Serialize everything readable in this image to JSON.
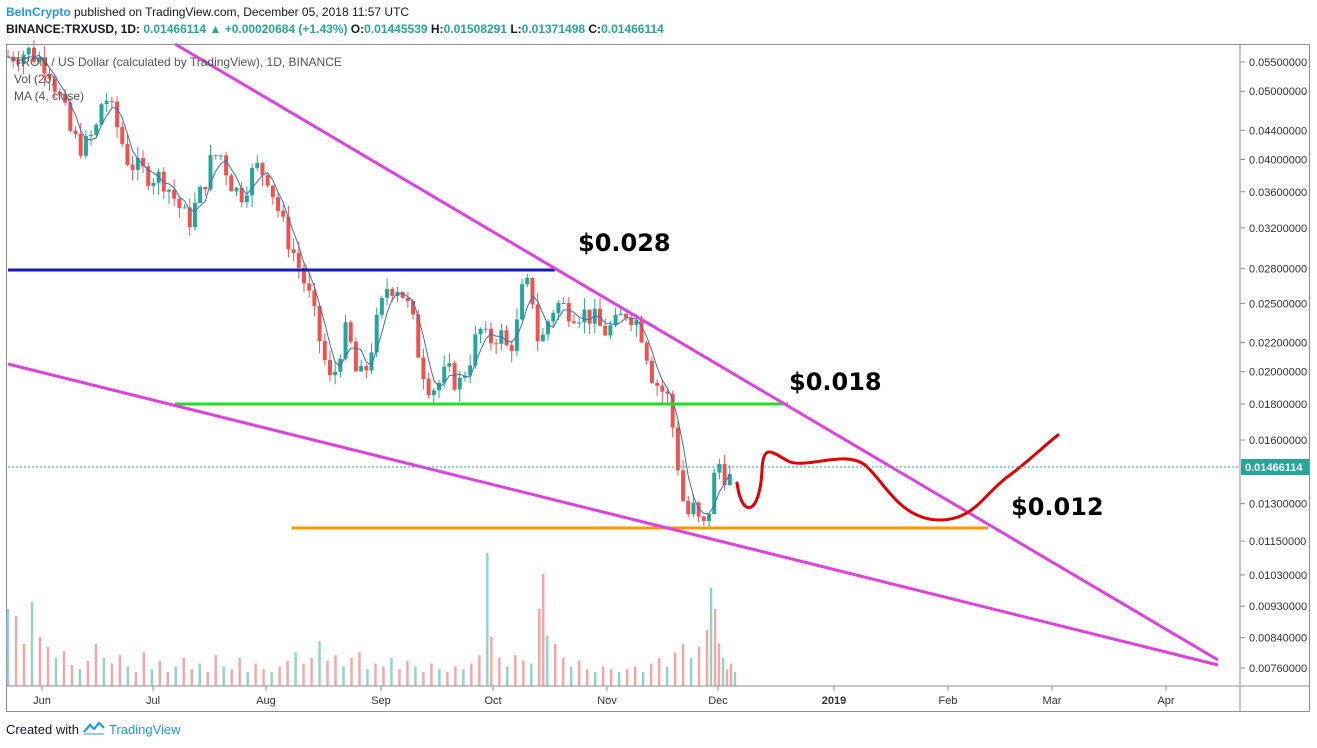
{
  "header": {
    "brand": "BeInCrypto",
    "published": " published on TradingView.com, December 05, 2018 11:57 UTC",
    "symbol": "BINANCE:TRXUSD, 1D",
    "last": "0.01466114",
    "change": "+0.00020684 (+1.43%)",
    "o_label": "O:",
    "o": "0.01445539",
    "h_label": "H:",
    "h": "0.01508291",
    "l_label": "L:",
    "l": "0.01371498",
    "c_label": "C:",
    "c": "0.01466114"
  },
  "legend": {
    "title": "TRON / US Dollar (calculated by TradingView), 1D, BINANCE",
    "vol": "Vol (20)",
    "ma": "MA (4, close)"
  },
  "footer": {
    "created": "Created with",
    "tv": "TradingView"
  },
  "colors": {
    "up": "#26a69a",
    "down": "#ef5350",
    "ma": "#3a6fb8",
    "wedge": "#e040e0",
    "resistance": "#1a1ab8",
    "support_green": "#22dd22",
    "support_orange": "#ff9900",
    "projection": "#e00000",
    "last_price": "#26a69a"
  },
  "chart_data": {
    "type": "candlestick",
    "y_scale": "log",
    "ylim": [
      0.0074,
      0.058
    ],
    "y_ticks": [
      "0.05500000",
      "0.05000000",
      "0.04400000",
      "0.04000000",
      "0.03600000",
      "0.03200000",
      "0.02800000",
      "0.02500000",
      "0.02200000",
      "0.02000000",
      "0.01800000",
      "0.01600000",
      "0.01300000",
      "0.01150000",
      "0.01030000",
      "0.00930000",
      "0.00840000",
      "0.00760000"
    ],
    "x_ticks": [
      "Jun",
      "Jul",
      "Aug",
      "Sep",
      "Oct",
      "Nov",
      "Dec",
      "2019",
      "Feb",
      "Mar",
      "Apr"
    ],
    "last_price_label": "0.01466114",
    "annotations": [
      "$0.028",
      "$0.018",
      "$0.012"
    ],
    "key_levels": [
      {
        "label": "$0.028",
        "value": 0.028
      },
      {
        "label": "$0.018",
        "value": 0.018
      },
      {
        "label": "$0.012",
        "value": 0.012
      }
    ],
    "price_path": [
      [
        0,
        0.056
      ],
      [
        10,
        0.057
      ],
      [
        20,
        0.0545
      ],
      [
        28,
        0.047
      ],
      [
        32,
        0.043
      ],
      [
        38,
        0.0415
      ],
      [
        44,
        0.044
      ],
      [
        48,
        0.05
      ],
      [
        54,
        0.045
      ],
      [
        60,
        0.04
      ],
      [
        66,
        0.0385
      ],
      [
        72,
        0.038
      ],
      [
        78,
        0.0375
      ],
      [
        84,
        0.035
      ],
      [
        90,
        0.0325
      ],
      [
        96,
        0.0355
      ],
      [
        102,
        0.04
      ],
      [
        106,
        0.041
      ],
      [
        112,
        0.037
      ],
      [
        116,
        0.0355
      ],
      [
        124,
        0.039
      ],
      [
        130,
        0.038
      ],
      [
        138,
        0.032
      ],
      [
        144,
        0.029
      ],
      [
        150,
        0.026
      ],
      [
        154,
        0.0235
      ],
      [
        158,
        0.021
      ],
      [
        162,
        0.019
      ],
      [
        166,
        0.0215
      ],
      [
        170,
        0.023
      ],
      [
        174,
        0.02
      ],
      [
        178,
        0.0195
      ],
      [
        184,
        0.023
      ],
      [
        190,
        0.0265
      ],
      [
        196,
        0.0265
      ],
      [
        202,
        0.024
      ],
      [
        206,
        0.021
      ],
      [
        210,
        0.0193
      ],
      [
        214,
        0.019
      ],
      [
        220,
        0.02
      ],
      [
        226,
        0.0192
      ],
      [
        232,
        0.0212
      ],
      [
        236,
        0.023
      ],
      [
        240,
        0.022
      ],
      [
        246,
        0.0228
      ],
      [
        250,
        0.0215
      ],
      [
        254,
        0.0225
      ],
      [
        258,
        0.0265
      ],
      [
        262,
        0.0262
      ],
      [
        266,
        0.0215
      ],
      [
        270,
        0.0235
      ],
      [
        274,
        0.025
      ],
      [
        280,
        0.0246
      ],
      [
        286,
        0.0243
      ],
      [
        292,
        0.024
      ],
      [
        298,
        0.0228
      ],
      [
        304,
        0.0232
      ],
      [
        310,
        0.0245
      ],
      [
        314,
        0.0238
      ],
      [
        318,
        0.0225
      ],
      [
        322,
        0.02
      ],
      [
        326,
        0.019
      ],
      [
        330,
        0.0185
      ],
      [
        334,
        0.016
      ],
      [
        337,
        0.0135
      ],
      [
        340,
        0.0125
      ],
      [
        343,
        0.0128
      ],
      [
        346,
        0.0122
      ],
      [
        349,
        0.012
      ],
      [
        352,
        0.0132
      ],
      [
        355,
        0.015
      ],
      [
        358,
        0.0145
      ],
      [
        361,
        0.014
      ],
      [
        364,
        0.01466
      ]
    ],
    "volume": [
      [
        0,
        0.55
      ],
      [
        4,
        0.5
      ],
      [
        8,
        0.3
      ],
      [
        12,
        0.6
      ],
      [
        16,
        0.35
      ],
      [
        20,
        0.28
      ],
      [
        24,
        0.2
      ],
      [
        28,
        0.25
      ],
      [
        32,
        0.15
      ],
      [
        36,
        0.12
      ],
      [
        40,
        0.18
      ],
      [
        44,
        0.3
      ],
      [
        48,
        0.2
      ],
      [
        52,
        0.16
      ],
      [
        56,
        0.22
      ],
      [
        60,
        0.14
      ],
      [
        64,
        0.1
      ],
      [
        68,
        0.24
      ],
      [
        72,
        0.12
      ],
      [
        76,
        0.18
      ],
      [
        80,
        0.1
      ],
      [
        84,
        0.14
      ],
      [
        88,
        0.2
      ],
      [
        92,
        0.12
      ],
      [
        96,
        0.16
      ],
      [
        100,
        0.1
      ],
      [
        104,
        0.22
      ],
      [
        108,
        0.14
      ],
      [
        112,
        0.12
      ],
      [
        116,
        0.2
      ],
      [
        120,
        0.1
      ],
      [
        124,
        0.16
      ],
      [
        128,
        0.12
      ],
      [
        132,
        0.1
      ],
      [
        136,
        0.14
      ],
      [
        140,
        0.18
      ],
      [
        144,
        0.24
      ],
      [
        148,
        0.16
      ],
      [
        152,
        0.2
      ],
      [
        156,
        0.32
      ],
      [
        160,
        0.18
      ],
      [
        164,
        0.22
      ],
      [
        168,
        0.14
      ],
      [
        172,
        0.2
      ],
      [
        176,
        0.24
      ],
      [
        180,
        0.12
      ],
      [
        184,
        0.16
      ],
      [
        188,
        0.14
      ],
      [
        192,
        0.2
      ],
      [
        196,
        0.12
      ],
      [
        200,
        0.18
      ],
      [
        204,
        0.14
      ],
      [
        208,
        0.1
      ],
      [
        212,
        0.16
      ],
      [
        216,
        0.12
      ],
      [
        220,
        0.1
      ],
      [
        224,
        0.14
      ],
      [
        228,
        0.12
      ],
      [
        232,
        0.16
      ],
      [
        236,
        0.22
      ],
      [
        240,
        0.95
      ],
      [
        242,
        0.35
      ],
      [
        246,
        0.2
      ],
      [
        250,
        0.14
      ],
      [
        254,
        0.22
      ],
      [
        258,
        0.18
      ],
      [
        262,
        0.16
      ],
      [
        266,
        0.55
      ],
      [
        268,
        0.8
      ],
      [
        270,
        0.36
      ],
      [
        274,
        0.3
      ],
      [
        278,
        0.2
      ],
      [
        282,
        0.14
      ],
      [
        286,
        0.18
      ],
      [
        290,
        0.12
      ],
      [
        294,
        0.1
      ],
      [
        298,
        0.14
      ],
      [
        302,
        0.12
      ],
      [
        306,
        0.1
      ],
      [
        310,
        0.12
      ],
      [
        314,
        0.14
      ],
      [
        318,
        0.1
      ],
      [
        322,
        0.16
      ],
      [
        326,
        0.2
      ],
      [
        330,
        0.14
      ],
      [
        334,
        0.24
      ],
      [
        338,
        0.3
      ],
      [
        342,
        0.2
      ],
      [
        346,
        0.28
      ],
      [
        350,
        0.4
      ],
      [
        352,
        0.7
      ],
      [
        354,
        0.55
      ],
      [
        356,
        0.3
      ],
      [
        358,
        0.2
      ],
      [
        360,
        0.12
      ],
      [
        362,
        0.16
      ],
      [
        364,
        0.1
      ]
    ]
  }
}
